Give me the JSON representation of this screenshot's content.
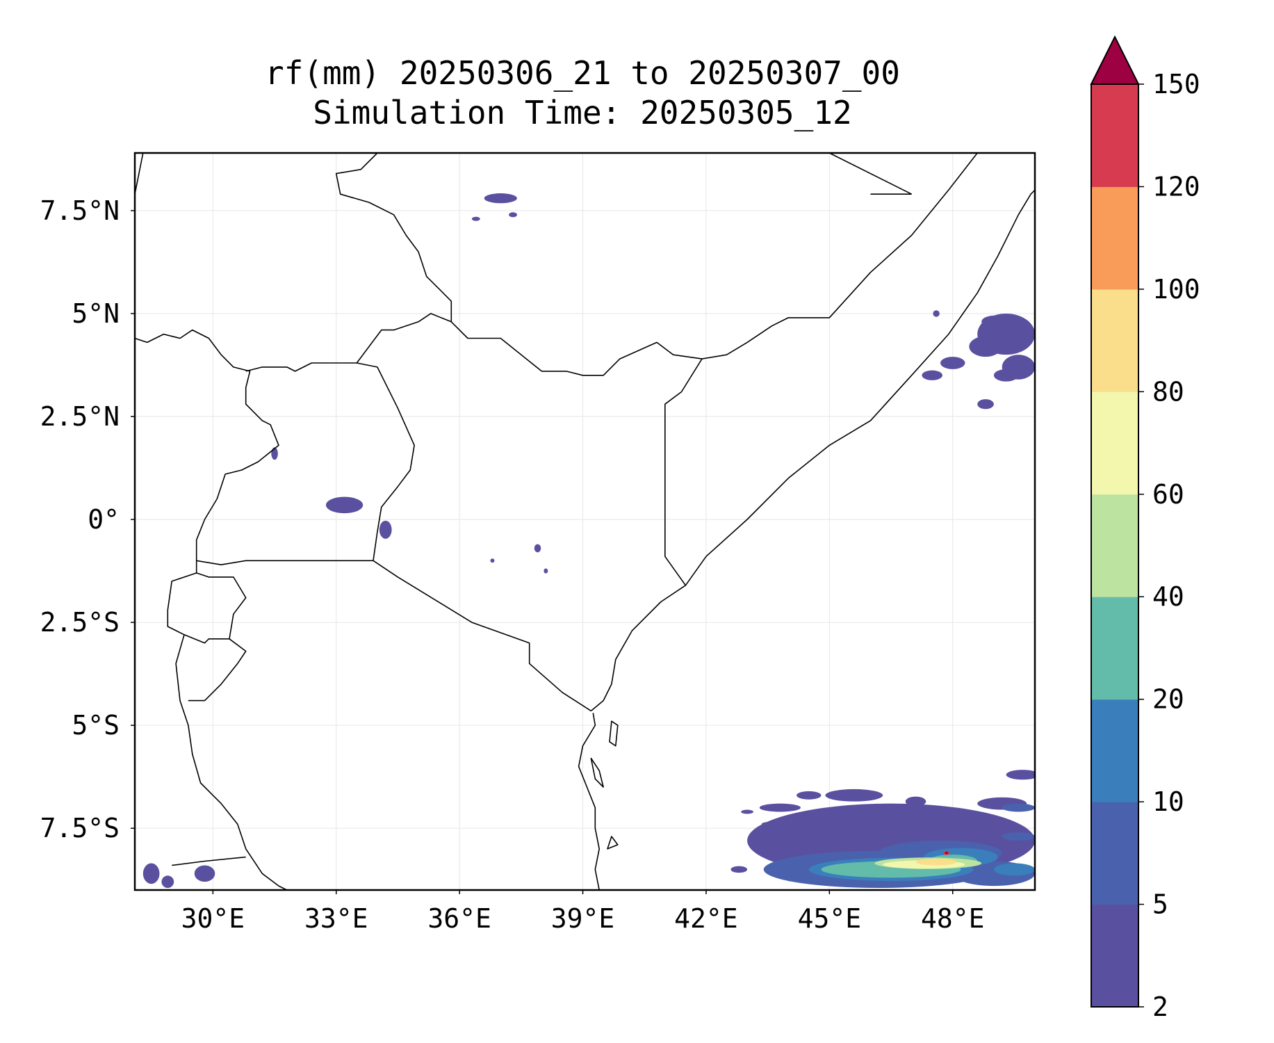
{
  "title": {
    "line1": "rf(mm) 20250306_21 to 20250307_00",
    "line2": "Simulation Time: 20250305_12"
  },
  "chart_data": {
    "type": "heatmap",
    "variable": "rf(mm)",
    "extent": {
      "lon": [
        28.1,
        50.0
      ],
      "lat": [
        -9.0,
        8.9
      ]
    },
    "x_ticks": [
      {
        "value": 30,
        "label": "30°E"
      },
      {
        "value": 33,
        "label": "33°E"
      },
      {
        "value": 36,
        "label": "36°E"
      },
      {
        "value": 39,
        "label": "39°E"
      },
      {
        "value": 42,
        "label": "42°E"
      },
      {
        "value": 45,
        "label": "45°E"
      },
      {
        "value": 48,
        "label": "48°E"
      }
    ],
    "y_ticks": [
      {
        "value": 7.5,
        "label": "7.5°N"
      },
      {
        "value": 5,
        "label": "5°N"
      },
      {
        "value": 2.5,
        "label": "2.5°N"
      },
      {
        "value": 0,
        "label": "0°"
      },
      {
        "value": -2.5,
        "label": "2.5°S"
      },
      {
        "value": -5,
        "label": "5°S"
      },
      {
        "value": -7.5,
        "label": "7.5°S"
      }
    ],
    "grid": true,
    "colorbar": {
      "levels": [
        2,
        5,
        10,
        20,
        40,
        60,
        80,
        100,
        120,
        150
      ],
      "colors": [
        "#5a50a0",
        "#4a62ad",
        "#3a7fbb",
        "#63bba9",
        "#bde3a0",
        "#f2f7ad",
        "#fbde8c",
        "#f99b59",
        "#d73b4f"
      ],
      "extend_color": "#9e0142",
      "extend": "max",
      "orientation": "vertical"
    },
    "rain_areas": [
      {
        "lon": 37.0,
        "lat": 7.8,
        "rx": 0.4,
        "ry": 0.12,
        "level": 2
      },
      {
        "lon": 36.4,
        "lat": 7.3,
        "rx": 0.1,
        "ry": 0.05,
        "level": 2
      },
      {
        "lon": 37.3,
        "lat": 7.4,
        "rx": 0.1,
        "ry": 0.06,
        "level": 2
      },
      {
        "lon": 31.5,
        "lat": 1.6,
        "rx": 0.08,
        "ry": 0.15,
        "level": 2
      },
      {
        "lon": 33.2,
        "lat": 0.35,
        "rx": 0.45,
        "ry": 0.2,
        "level": 2
      },
      {
        "lon": 34.2,
        "lat": -0.25,
        "rx": 0.15,
        "ry": 0.22,
        "level": 2
      },
      {
        "lon": 37.9,
        "lat": -0.7,
        "rx": 0.08,
        "ry": 0.1,
        "level": 2
      },
      {
        "lon": 36.8,
        "lat": -1.0,
        "rx": 0.05,
        "ry": 0.05,
        "level": 2
      },
      {
        "lon": 38.1,
        "lat": -1.25,
        "rx": 0.05,
        "ry": 0.06,
        "level": 2
      },
      {
        "lon": 49.3,
        "lat": 4.5,
        "rx": 0.7,
        "ry": 0.5,
        "level": 2
      },
      {
        "lon": 48.8,
        "lat": 4.2,
        "rx": 0.4,
        "ry": 0.25,
        "level": 2
      },
      {
        "lon": 49.6,
        "lat": 3.7,
        "rx": 0.4,
        "ry": 0.3,
        "level": 2
      },
      {
        "lon": 48.0,
        "lat": 3.8,
        "rx": 0.3,
        "ry": 0.15,
        "level": 2
      },
      {
        "lon": 47.5,
        "lat": 3.5,
        "rx": 0.25,
        "ry": 0.12,
        "level": 2
      },
      {
        "lon": 48.8,
        "lat": 2.8,
        "rx": 0.2,
        "ry": 0.12,
        "level": 2
      },
      {
        "lon": 49.3,
        "lat": 3.5,
        "rx": 0.3,
        "ry": 0.15,
        "level": 2
      },
      {
        "lon": 49.0,
        "lat": 4.8,
        "rx": 0.3,
        "ry": 0.15,
        "level": 2
      },
      {
        "lon": 47.6,
        "lat": 5.0,
        "rx": 0.08,
        "ry": 0.08,
        "level": 2
      },
      {
        "lon": 46.5,
        "lat": -7.8,
        "rx": 3.5,
        "ry": 0.9,
        "level": 2
      },
      {
        "lon": 49.7,
        "lat": -6.2,
        "rx": 0.4,
        "ry": 0.12,
        "level": 2
      },
      {
        "lon": 43.8,
        "lat": -7.0,
        "rx": 0.5,
        "ry": 0.1,
        "level": 2
      },
      {
        "lon": 44.5,
        "lat": -6.7,
        "rx": 0.3,
        "ry": 0.1,
        "level": 2
      },
      {
        "lon": 45.6,
        "lat": -6.7,
        "rx": 0.7,
        "ry": 0.15,
        "level": 2
      },
      {
        "lon": 47.1,
        "lat": -6.85,
        "rx": 0.25,
        "ry": 0.12,
        "level": 2
      },
      {
        "lon": 49.2,
        "lat": -6.9,
        "rx": 0.6,
        "ry": 0.15,
        "level": 2
      },
      {
        "lon": 43.0,
        "lat": -7.1,
        "rx": 0.15,
        "ry": 0.05,
        "level": 2
      },
      {
        "lon": 43.5,
        "lat": -7.4,
        "rx": 0.15,
        "ry": 0.05,
        "level": 2
      },
      {
        "lon": 44.5,
        "lat": -8.1,
        "rx": 0.8,
        "ry": 0.15,
        "level": 2
      },
      {
        "lon": 42.8,
        "lat": -8.5,
        "rx": 0.2,
        "ry": 0.08,
        "level": 2
      },
      {
        "lon": 46.2,
        "lat": -8.5,
        "rx": 2.8,
        "ry": 0.45,
        "level": 5
      },
      {
        "lon": 47.7,
        "lat": -8.1,
        "rx": 1.5,
        "ry": 0.3,
        "level": 5
      },
      {
        "lon": 49.0,
        "lat": -8.6,
        "rx": 1.0,
        "ry": 0.3,
        "level": 5
      },
      {
        "lon": 49.6,
        "lat": -7.7,
        "rx": 0.4,
        "ry": 0.1,
        "level": 5
      },
      {
        "lon": 49.6,
        "lat": -7.0,
        "rx": 0.4,
        "ry": 0.1,
        "level": 5
      },
      {
        "lon": 46.5,
        "lat": -8.5,
        "rx": 2.0,
        "ry": 0.28,
        "level": 10
      },
      {
        "lon": 48.2,
        "lat": -8.2,
        "rx": 0.9,
        "ry": 0.22,
        "level": 10
      },
      {
        "lon": 49.5,
        "lat": -8.5,
        "rx": 0.5,
        "ry": 0.15,
        "level": 10
      },
      {
        "lon": 46.5,
        "lat": -8.5,
        "rx": 1.7,
        "ry": 0.2,
        "level": 20
      },
      {
        "lon": 48.0,
        "lat": -8.3,
        "rx": 0.6,
        "ry": 0.16,
        "level": 20
      },
      {
        "lon": 47.4,
        "lat": -8.35,
        "rx": 1.3,
        "ry": 0.14,
        "level": 40
      },
      {
        "lon": 47.3,
        "lat": -8.38,
        "rx": 1.0,
        "ry": 0.1,
        "level": 60
      },
      {
        "lon": 47.6,
        "lat": -8.32,
        "rx": 0.5,
        "ry": 0.08,
        "level": 80
      },
      {
        "lon": 47.85,
        "lat": -8.1,
        "rx": 0.08,
        "ry": 0.05,
        "level": 120
      },
      {
        "lon": 47.85,
        "lat": -8.1,
        "rx": 0.04,
        "ry": 0.03,
        "level": 150
      },
      {
        "lon": 28.5,
        "lat": -8.6,
        "rx": 0.2,
        "ry": 0.25,
        "level": 2
      },
      {
        "lon": 28.9,
        "lat": -8.8,
        "rx": 0.15,
        "ry": 0.15,
        "level": 2
      },
      {
        "lon": 29.8,
        "lat": -8.6,
        "rx": 0.25,
        "ry": 0.2,
        "level": 2
      }
    ],
    "borders": [
      [
        [
          28.1,
          4.4
        ],
        [
          28.4,
          4.3
        ],
        [
          28.8,
          4.5
        ],
        [
          29.2,
          4.4
        ],
        [
          29.5,
          4.6
        ],
        [
          29.9,
          4.4
        ],
        [
          30.2,
          4.0
        ],
        [
          30.5,
          3.7
        ],
        [
          30.9,
          3.6
        ],
        [
          30.8,
          3.2
        ],
        [
          30.8,
          2.8
        ],
        [
          31.2,
          2.4
        ],
        [
          31.4,
          2.3
        ],
        [
          31.6,
          1.8
        ],
        [
          31.1,
          1.4
        ],
        [
          30.7,
          1.2
        ],
        [
          30.3,
          1.1
        ],
        [
          30.1,
          0.5
        ],
        [
          29.8,
          0.0
        ],
        [
          29.6,
          -0.5
        ],
        [
          29.6,
          -1.0
        ],
        [
          29.6,
          -1.3
        ],
        [
          29.0,
          -1.5
        ],
        [
          28.9,
          -2.2
        ],
        [
          28.9,
          -2.6
        ],
        [
          29.3,
          -2.8
        ],
        [
          29.1,
          -3.5
        ],
        [
          29.2,
          -4.4
        ],
        [
          29.4,
          -5.0
        ],
        [
          29.5,
          -5.7
        ],
        [
          29.7,
          -6.4
        ],
        [
          30.2,
          -6.9
        ],
        [
          30.6,
          -7.4
        ],
        [
          30.8,
          -8.0
        ],
        [
          31.2,
          -8.6
        ],
        [
          31.6,
          -8.9
        ],
        [
          31.8,
          -9.0
        ]
      ],
      [
        [
          30.8,
          3.6
        ],
        [
          31.2,
          3.7
        ],
        [
          31.8,
          3.7
        ],
        [
          32.0,
          3.6
        ],
        [
          32.4,
          3.8
        ],
        [
          32.9,
          3.8
        ],
        [
          33.5,
          3.8
        ],
        [
          34.1,
          4.6
        ],
        [
          34.4,
          4.6
        ],
        [
          35.0,
          4.8
        ],
        [
          35.3,
          5.0
        ],
        [
          35.8,
          4.8
        ],
        [
          36.2,
          4.4
        ],
        [
          37.0,
          4.4
        ],
        [
          38.0,
          3.6
        ],
        [
          38.6,
          3.6
        ],
        [
          39.0,
          3.5
        ],
        [
          39.5,
          3.5
        ],
        [
          39.9,
          3.9
        ],
        [
          40.8,
          4.3
        ],
        [
          41.2,
          4.0
        ],
        [
          41.9,
          3.9
        ]
      ],
      [
        [
          33.5,
          3.8
        ],
        [
          34.0,
          3.7
        ],
        [
          34.5,
          2.7
        ],
        [
          34.9,
          1.8
        ],
        [
          34.8,
          1.2
        ],
        [
          34.5,
          0.8
        ],
        [
          34.1,
          0.3
        ],
        [
          34.0,
          -0.3
        ],
        [
          33.9,
          -1.0
        ]
      ],
      [
        [
          29.6,
          -1.0
        ],
        [
          30.2,
          -1.1
        ],
        [
          30.8,
          -1.0
        ],
        [
          31.5,
          -1.0
        ],
        [
          32.5,
          -1.0
        ],
        [
          33.9,
          -1.0
        ],
        [
          34.5,
          -1.4
        ],
        [
          36.3,
          -2.5
        ],
        [
          37.7,
          -3.0
        ],
        [
          37.7,
          -3.5
        ],
        [
          38.5,
          -4.2
        ],
        [
          39.2,
          -4.65
        ]
      ],
      [
        [
          29.6,
          -1.3
        ],
        [
          29.9,
          -1.4
        ],
        [
          30.5,
          -1.4
        ],
        [
          30.8,
          -1.9
        ],
        [
          30.5,
          -2.3
        ],
        [
          30.4,
          -2.9
        ],
        [
          29.9,
          -2.9
        ],
        [
          29.8,
          -3.0
        ],
        [
          29.3,
          -2.8
        ]
      ],
      [
        [
          30.4,
          -2.9
        ],
        [
          30.8,
          -3.2
        ],
        [
          30.6,
          -3.5
        ],
        [
          30.2,
          -4.0
        ],
        [
          29.8,
          -4.4
        ],
        [
          29.4,
          -4.4
        ]
      ],
      [
        [
          29.0,
          -8.4
        ],
        [
          29.8,
          -8.3
        ],
        [
          30.8,
          -8.2
        ]
      ],
      [
        [
          41.9,
          3.9
        ],
        [
          41.4,
          3.1
        ],
        [
          41.0,
          2.8
        ],
        [
          41.0,
          1.5
        ],
        [
          41.0,
          0.0
        ],
        [
          41.0,
          -0.9
        ],
        [
          41.5,
          -1.6
        ]
      ],
      [
        [
          39.2,
          -4.65
        ],
        [
          39.5,
          -4.4
        ],
        [
          39.7,
          -4.0
        ],
        [
          39.8,
          -3.4
        ],
        [
          40.2,
          -2.7
        ],
        [
          40.9,
          -2.0
        ],
        [
          41.5,
          -1.6
        ],
        [
          42.0,
          -0.9
        ],
        [
          43.0,
          0.0
        ],
        [
          44.0,
          1.0
        ],
        [
          45.0,
          1.8
        ],
        [
          46.0,
          2.4
        ],
        [
          47.0,
          3.5
        ],
        [
          47.9,
          4.5
        ],
        [
          48.6,
          5.5
        ],
        [
          49.1,
          6.4
        ],
        [
          49.6,
          7.4
        ],
        [
          49.9,
          7.9
        ],
        [
          50.0,
          8.0
        ]
      ],
      [
        [
          41.9,
          3.9
        ],
        [
          42.5,
          4.0
        ],
        [
          43.0,
          4.3
        ],
        [
          43.6,
          4.7
        ],
        [
          44.0,
          4.9
        ],
        [
          45.0,
          4.9
        ],
        [
          46.0,
          6.0
        ],
        [
          47.0,
          6.9
        ],
        [
          47.9,
          8.0
        ],
        [
          48.6,
          8.9
        ]
      ],
      [
        [
          46.0,
          7.9
        ],
        [
          47.0,
          7.9
        ]
      ],
      [
        [
          45.0,
          8.9
        ],
        [
          47.0,
          7.9
        ]
      ],
      [
        [
          28.1,
          7.9
        ],
        [
          28.3,
          8.9
        ]
      ],
      [
        [
          34.0,
          8.9
        ],
        [
          33.6,
          8.5
        ],
        [
          33.0,
          8.4
        ],
        [
          33.1,
          7.9
        ],
        [
          33.8,
          7.7
        ],
        [
          34.4,
          7.4
        ],
        [
          34.7,
          6.9
        ],
        [
          35.0,
          6.5
        ],
        [
          35.2,
          5.9
        ],
        [
          35.6,
          5.5
        ],
        [
          35.8,
          5.3
        ],
        [
          35.8,
          4.8
        ]
      ],
      [
        [
          39.25,
          -4.7
        ],
        [
          39.3,
          -5.0
        ],
        [
          39.0,
          -5.5
        ],
        [
          38.9,
          -6.0
        ],
        [
          39.1,
          -6.5
        ],
        [
          39.3,
          -7.0
        ],
        [
          39.3,
          -7.5
        ],
        [
          39.4,
          -8.0
        ],
        [
          39.3,
          -8.5
        ],
        [
          39.4,
          -9.0
        ]
      ]
    ],
    "islands": [
      [
        [
          39.7,
          -4.9
        ],
        [
          39.85,
          -5.0
        ],
        [
          39.8,
          -5.5
        ],
        [
          39.65,
          -5.4
        ],
        [
          39.7,
          -4.9
        ]
      ],
      [
        [
          39.2,
          -5.8
        ],
        [
          39.4,
          -6.1
        ],
        [
          39.5,
          -6.5
        ],
        [
          39.3,
          -6.3
        ],
        [
          39.2,
          -5.8
        ]
      ],
      [
        [
          39.7,
          -7.7
        ],
        [
          39.85,
          -7.9
        ],
        [
          39.6,
          -8.0
        ],
        [
          39.7,
          -7.7
        ]
      ]
    ]
  }
}
